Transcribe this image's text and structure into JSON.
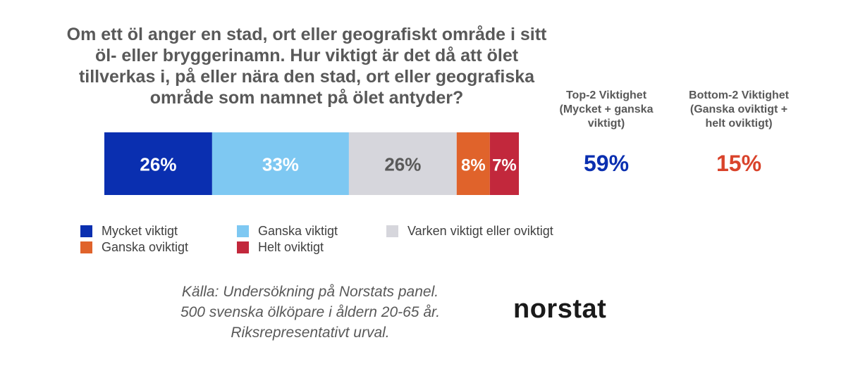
{
  "title": "Om ett öl anger en stad, ort eller geografiskt område i sitt öl- eller bryggerinamn. Hur viktigt är det då att ölet tillverkas i, på eller nära den stad, ort eller geografiska område som namnet på ölet antyder?",
  "chart_data": {
    "type": "bar",
    "orientation": "horizontal",
    "stacked": true,
    "xlim": [
      0,
      100
    ],
    "unit": "%",
    "series": [
      {
        "name": "Mycket viktigt",
        "value": 26,
        "label": "26%",
        "color": "#0a2fb0",
        "label_color": "#ffffff"
      },
      {
        "name": "Ganska viktigt",
        "value": 33,
        "label": "33%",
        "color": "#7ec8f2",
        "label_color": "#ffffff"
      },
      {
        "name": "Varken viktigt eller oviktigt",
        "value": 26,
        "label": "26%",
        "color": "#d6d6dc",
        "label_color": "#595959"
      },
      {
        "name": "Ganska oviktigt",
        "value": 8,
        "label": "8%",
        "color": "#e0632b",
        "label_color": "#ffffff"
      },
      {
        "name": "Helt oviktigt",
        "value": 7,
        "label": "7%",
        "color": "#c2283c",
        "label_color": "#ffffff"
      }
    ],
    "legend_position": "bottom"
  },
  "summary": {
    "top2": {
      "label_lines": [
        "Top-2 Viktighet",
        "(Mycket + ganska",
        "viktigt)"
      ],
      "value": "59%",
      "color": "#0a2fb0"
    },
    "bottom2": {
      "label_lines": [
        "Bottom-2 Viktighet",
        "(Ganska oviktigt +",
        "helt oviktigt)"
      ],
      "value": "15%",
      "color": "#d9432b"
    }
  },
  "source_lines": [
    "Källa: Undersökning på Norstats panel.",
    "500 svenska ölköpare i åldern 20-65 år.",
    "Riksrepresentativt urval."
  ],
  "logo_text": "norstat"
}
